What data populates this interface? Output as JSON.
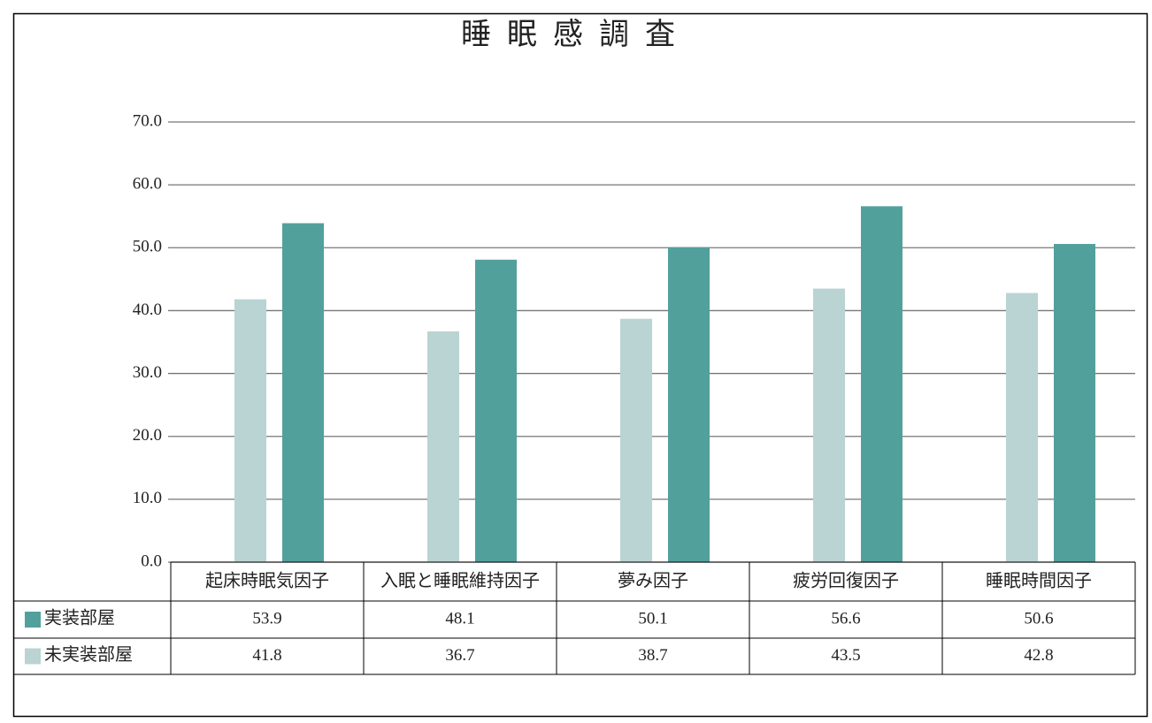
{
  "chart_data": {
    "type": "bar",
    "title": "睡眠感調査",
    "categories": [
      "起床時眠気因子",
      "入眠と睡眠維持因子",
      "夢み因子",
      "疲労回復因子",
      "睡眠時間因子"
    ],
    "series": [
      {
        "name": "実装部屋",
        "color": "#52a09c",
        "values": [
          53.9,
          48.1,
          50.1,
          56.6,
          50.6
        ]
      },
      {
        "name": "未実装部屋",
        "color": "#bad3d3",
        "values": [
          41.8,
          36.7,
          38.7,
          43.5,
          42.8
        ]
      }
    ],
    "ylim": [
      0,
      70
    ],
    "yticks": [
      {
        "value": 0,
        "label": "0.0"
      },
      {
        "value": 10,
        "label": "10.0"
      },
      {
        "value": 20,
        "label": "20.0"
      },
      {
        "value": 30,
        "label": "30.0"
      },
      {
        "value": 40,
        "label": "40.0"
      },
      {
        "value": 50,
        "label": "50.0"
      },
      {
        "value": 60,
        "label": "60.0"
      },
      {
        "value": 70,
        "label": "70.0"
      }
    ],
    "grid": true
  }
}
